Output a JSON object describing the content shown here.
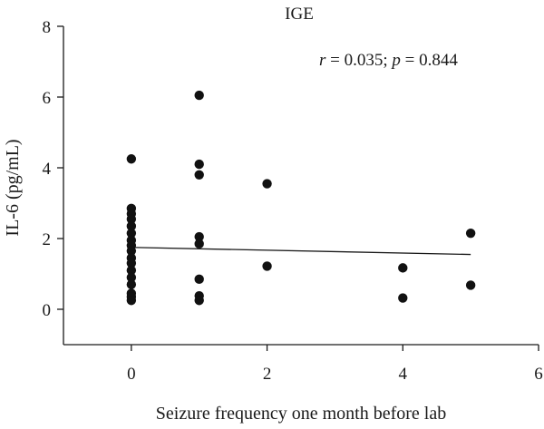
{
  "chart_data": {
    "type": "scatter",
    "title": "IGE",
    "xlabel": "Seizure frequency one month before lab",
    "ylabel": "IL-6 (pg/mL)",
    "xlim": [
      -1,
      6
    ],
    "ylim": [
      -1,
      8
    ],
    "x_ticks": [
      0,
      2,
      4,
      6
    ],
    "y_ticks": [
      0,
      2,
      4,
      6,
      8
    ],
    "grid": false,
    "annotation": {
      "r_symbol": "r",
      "r_text": " = 0.035; ",
      "p_symbol": "p",
      "p_text": " = 0.844"
    },
    "points": [
      {
        "x": 0,
        "y": 4.25
      },
      {
        "x": 0,
        "y": 2.85
      },
      {
        "x": 0,
        "y": 2.7
      },
      {
        "x": 0,
        "y": 2.55
      },
      {
        "x": 0,
        "y": 2.35
      },
      {
        "x": 0,
        "y": 2.15
      },
      {
        "x": 0,
        "y": 1.95
      },
      {
        "x": 0,
        "y": 1.8
      },
      {
        "x": 0,
        "y": 1.65
      },
      {
        "x": 0,
        "y": 1.45
      },
      {
        "x": 0,
        "y": 1.3
      },
      {
        "x": 0,
        "y": 1.1
      },
      {
        "x": 0,
        "y": 0.9
      },
      {
        "x": 0,
        "y": 0.7
      },
      {
        "x": 0,
        "y": 0.45
      },
      {
        "x": 0,
        "y": 0.35
      },
      {
        "x": 0,
        "y": 0.25
      },
      {
        "x": 1,
        "y": 6.05
      },
      {
        "x": 1,
        "y": 4.1
      },
      {
        "x": 1,
        "y": 3.8
      },
      {
        "x": 1,
        "y": 2.05
      },
      {
        "x": 1,
        "y": 1.85
      },
      {
        "x": 1,
        "y": 0.85
      },
      {
        "x": 1,
        "y": 0.38
      },
      {
        "x": 1,
        "y": 0.25
      },
      {
        "x": 2,
        "y": 3.55
      },
      {
        "x": 2,
        "y": 1.22
      },
      {
        "x": 4,
        "y": 1.17
      },
      {
        "x": 4,
        "y": 0.32
      },
      {
        "x": 5,
        "y": 2.15
      },
      {
        "x": 5,
        "y": 0.68
      }
    ],
    "regression_line": {
      "x": [
        0,
        5
      ],
      "y": [
        1.75,
        1.55
      ]
    }
  }
}
